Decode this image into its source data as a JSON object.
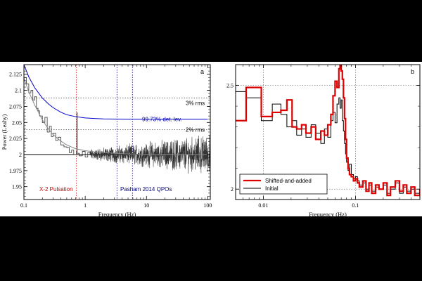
{
  "chart_data": [
    {
      "panel": "a",
      "type": "line",
      "x_scale": "log",
      "xlim": [
        0.1,
        110
      ],
      "ylim": [
        1.93,
        2.14
      ],
      "grid": false,
      "xlabel": "Frequency (Hz)",
      "ylabel": "Power (Leahy)",
      "x_ticks": [
        {
          "value": 0.1,
          "label": "0.1"
        },
        {
          "value": 1,
          "label": "1"
        },
        {
          "value": 10,
          "label": "10"
        },
        {
          "value": 100,
          "label": "100"
        }
      ],
      "y_ticks": [
        {
          "value": 1.95,
          "label": "1.95"
        },
        {
          "value": 1.975,
          "label": "1.975"
        },
        {
          "value": 2.0,
          "label": "2"
        },
        {
          "value": 2.025,
          "label": "2.025"
        },
        {
          "value": 2.05,
          "label": "2.05"
        },
        {
          "value": 2.075,
          "label": "2.075"
        },
        {
          "value": 2.1,
          "label": "2.1"
        },
        {
          "value": 2.125,
          "label": "2.125"
        }
      ],
      "reference_lines": [
        {
          "kind": "horizontal",
          "y": 2.0,
          "color": "#000000",
          "style": "solid"
        },
        {
          "kind": "horizontal",
          "y": 2.088,
          "label": "3% rms",
          "color": "#555555",
          "style": "dotted"
        },
        {
          "kind": "horizontal",
          "y": 2.039,
          "label": "2% rms",
          "color": "#555555",
          "style": "dotted"
        },
        {
          "kind": "vertical",
          "x": 0.72,
          "color": "#cc0000",
          "style": "dotted"
        },
        {
          "kind": "vertical",
          "x": 3.3,
          "color": "#000080",
          "style": "dotted"
        },
        {
          "kind": "vertical",
          "x": 5.9,
          "color": "#000080",
          "style": "dotted"
        }
      ],
      "annotations": [
        {
          "text": "3% rms",
          "color": "#000000"
        },
        {
          "text": "99.73% det. lev.",
          "color": "#0000aa"
        },
        {
          "text": "2% rms",
          "color": "#000000"
        },
        {
          "text": "X-2 Pulsation",
          "color": "#cc0000"
        },
        {
          "text": "Pasham 2014 QPOs",
          "color": "#000080"
        },
        {
          "text": "a",
          "color": "#000000"
        }
      ],
      "series": [
        {
          "role": "detection-level",
          "color": "#0000cc",
          "x": [
            0.1,
            0.12,
            0.15,
            0.2,
            0.25,
            0.3,
            0.4,
            0.5,
            0.7,
            1,
            1.5,
            2,
            3,
            5,
            10,
            20,
            50,
            100
          ],
          "y": [
            2.14,
            2.121,
            2.104,
            2.088,
            2.079,
            2.073,
            2.066,
            2.062,
            2.059,
            2.057,
            2.056,
            2.0555,
            2.0552,
            2.055,
            2.055,
            2.055,
            2.055,
            2.055
          ]
        },
        {
          "role": "model",
          "color": "#888888",
          "x": [
            0.1,
            0.12,
            0.15,
            0.2,
            0.25,
            0.3,
            0.4,
            0.5,
            0.7,
            1,
            1.5,
            2,
            3,
            5,
            10,
            20,
            50,
            100
          ],
          "y": [
            2.119,
            2.098,
            2.077,
            2.054,
            2.04,
            2.031,
            2.021,
            2.015,
            2.009,
            2.006,
            2.004,
            2.003,
            2.002,
            2.001,
            2.0,
            2.0,
            2.0,
            2.0
          ]
        },
        {
          "role": "power-spectrum",
          "color": "#333333",
          "noise_start_hz": 1.2,
          "x": [
            0.1,
            0.11,
            0.12,
            0.13,
            0.14,
            0.15,
            0.16,
            0.17,
            0.18,
            0.2,
            0.22,
            0.24,
            0.26,
            0.28,
            0.3,
            0.33,
            0.36,
            0.4,
            0.45,
            0.5,
            0.55,
            0.6,
            0.65,
            0.72,
            0.73,
            0.74,
            0.8,
            0.9,
            1.0,
            1.1,
            1.2
          ],
          "y": [
            2.12,
            2.11,
            2.096,
            2.1,
            2.085,
            2.09,
            2.072,
            2.068,
            2.06,
            2.05,
            2.058,
            2.035,
            2.044,
            2.028,
            2.033,
            2.022,
            2.027,
            2.015,
            2.012,
            2.011,
            2.003,
            2.007,
            2.0,
            2.004,
            2.065,
            2.002,
            1.998,
            2.005,
            1.996,
            2.003,
            1.999
          ]
        }
      ]
    },
    {
      "panel": "b",
      "type": "line",
      "x_scale": "log",
      "xlim": [
        0.005,
        0.5
      ],
      "ylim": [
        1.95,
        2.6
      ],
      "grid": true,
      "xlabel": "Frequency (Hz)",
      "ylabel": "",
      "legend_position": "bottom-left",
      "x_ticks": [
        {
          "value": 0.01,
          "label": "0.01"
        },
        {
          "value": 0.1,
          "label": "0.1"
        }
      ],
      "y_ticks": [
        {
          "value": 2.0,
          "label": "2"
        },
        {
          "value": 2.5,
          "label": "2.5"
        }
      ],
      "annotations": [
        {
          "text": "b",
          "color": "#000000"
        }
      ],
      "series": [
        {
          "name": "Shifted-and-added",
          "color": "#dd0000",
          "x": [
            0.005,
            0.0065,
            0.0095,
            0.0125,
            0.0155,
            0.018,
            0.0205,
            0.023,
            0.026,
            0.029,
            0.033,
            0.037,
            0.042,
            0.046,
            0.05,
            0.054,
            0.057,
            0.06,
            0.063,
            0.066,
            0.068,
            0.07,
            0.072,
            0.074,
            0.076,
            0.078,
            0.08,
            0.083,
            0.086,
            0.09,
            0.095,
            0.1,
            0.105,
            0.11,
            0.12,
            0.13,
            0.14,
            0.15,
            0.165,
            0.18,
            0.2,
            0.22,
            0.24,
            0.27,
            0.3,
            0.33,
            0.36,
            0.4,
            0.44,
            0.5
          ],
          "y": [
            2.33,
            2.49,
            2.35,
            2.37,
            2.38,
            2.43,
            2.3,
            2.29,
            2.31,
            2.27,
            2.3,
            2.24,
            2.28,
            2.26,
            2.31,
            2.36,
            2.45,
            2.52,
            2.49,
            2.58,
            2.6,
            2.57,
            2.53,
            2.44,
            2.34,
            2.24,
            2.15,
            2.1,
            2.07,
            2.06,
            2.04,
            2.05,
            2.03,
            2.01,
            2.04,
            1.99,
            2.03,
            1.98,
            2.02,
            2.0,
            2.03,
            1.97,
            2.01,
            2.04,
            1.99,
            2.02,
            1.98,
            2.01,
            1.97,
            2.0
          ]
        },
        {
          "name": "Initial",
          "color": "#000000",
          "x": [
            0.005,
            0.0065,
            0.0095,
            0.0125,
            0.0155,
            0.018,
            0.0205,
            0.023,
            0.026,
            0.029,
            0.033,
            0.037,
            0.042,
            0.046,
            0.05,
            0.054,
            0.057,
            0.06,
            0.063,
            0.066,
            0.068,
            0.07,
            0.072,
            0.074,
            0.076,
            0.078,
            0.08,
            0.083,
            0.086,
            0.09,
            0.095,
            0.1,
            0.105,
            0.11,
            0.12,
            0.13,
            0.14,
            0.15,
            0.165,
            0.18,
            0.2,
            0.22,
            0.24,
            0.27,
            0.3,
            0.33,
            0.36,
            0.4,
            0.44,
            0.5
          ],
          "y": [
            2.47,
            2.44,
            2.33,
            2.41,
            2.36,
            2.3,
            2.33,
            2.26,
            2.29,
            2.25,
            2.31,
            2.27,
            2.22,
            2.29,
            2.25,
            2.33,
            2.37,
            2.32,
            2.41,
            2.44,
            2.39,
            2.43,
            2.33,
            2.28,
            2.22,
            2.17,
            2.13,
            2.09,
            2.12,
            2.07,
            2.05,
            2.06,
            2.04,
            2.02,
            2.03,
            2.0,
            2.02,
            1.99,
            2.01,
            2.0,
            2.02,
            1.98,
            2.0,
            2.03,
            1.98,
            2.01,
            1.99,
            2.0,
            1.98,
            1.99
          ]
        }
      ]
    }
  ]
}
